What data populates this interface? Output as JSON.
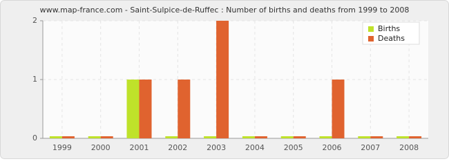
{
  "chart_data": {
    "type": "bar",
    "title": "www.map-france.com - Saint-Sulpice-de-Ruffec : Number of births and deaths from 1999 to 2008",
    "categories": [
      "1999",
      "2000",
      "2001",
      "2002",
      "2003",
      "2004",
      "2005",
      "2006",
      "2007",
      "2008"
    ],
    "series": [
      {
        "name": "Births",
        "color": "#bfe22a",
        "values": [
          0,
          0,
          1,
          0,
          0,
          0,
          0,
          0,
          0,
          0
        ]
      },
      {
        "name": "Deaths",
        "color": "#e0632f",
        "values": [
          0,
          0,
          1,
          1,
          2,
          0,
          0,
          1,
          0,
          0
        ]
      }
    ],
    "ylim": [
      0,
      2
    ],
    "yticks": [
      0,
      1,
      2
    ],
    "grid": true,
    "legend": "top-right"
  }
}
